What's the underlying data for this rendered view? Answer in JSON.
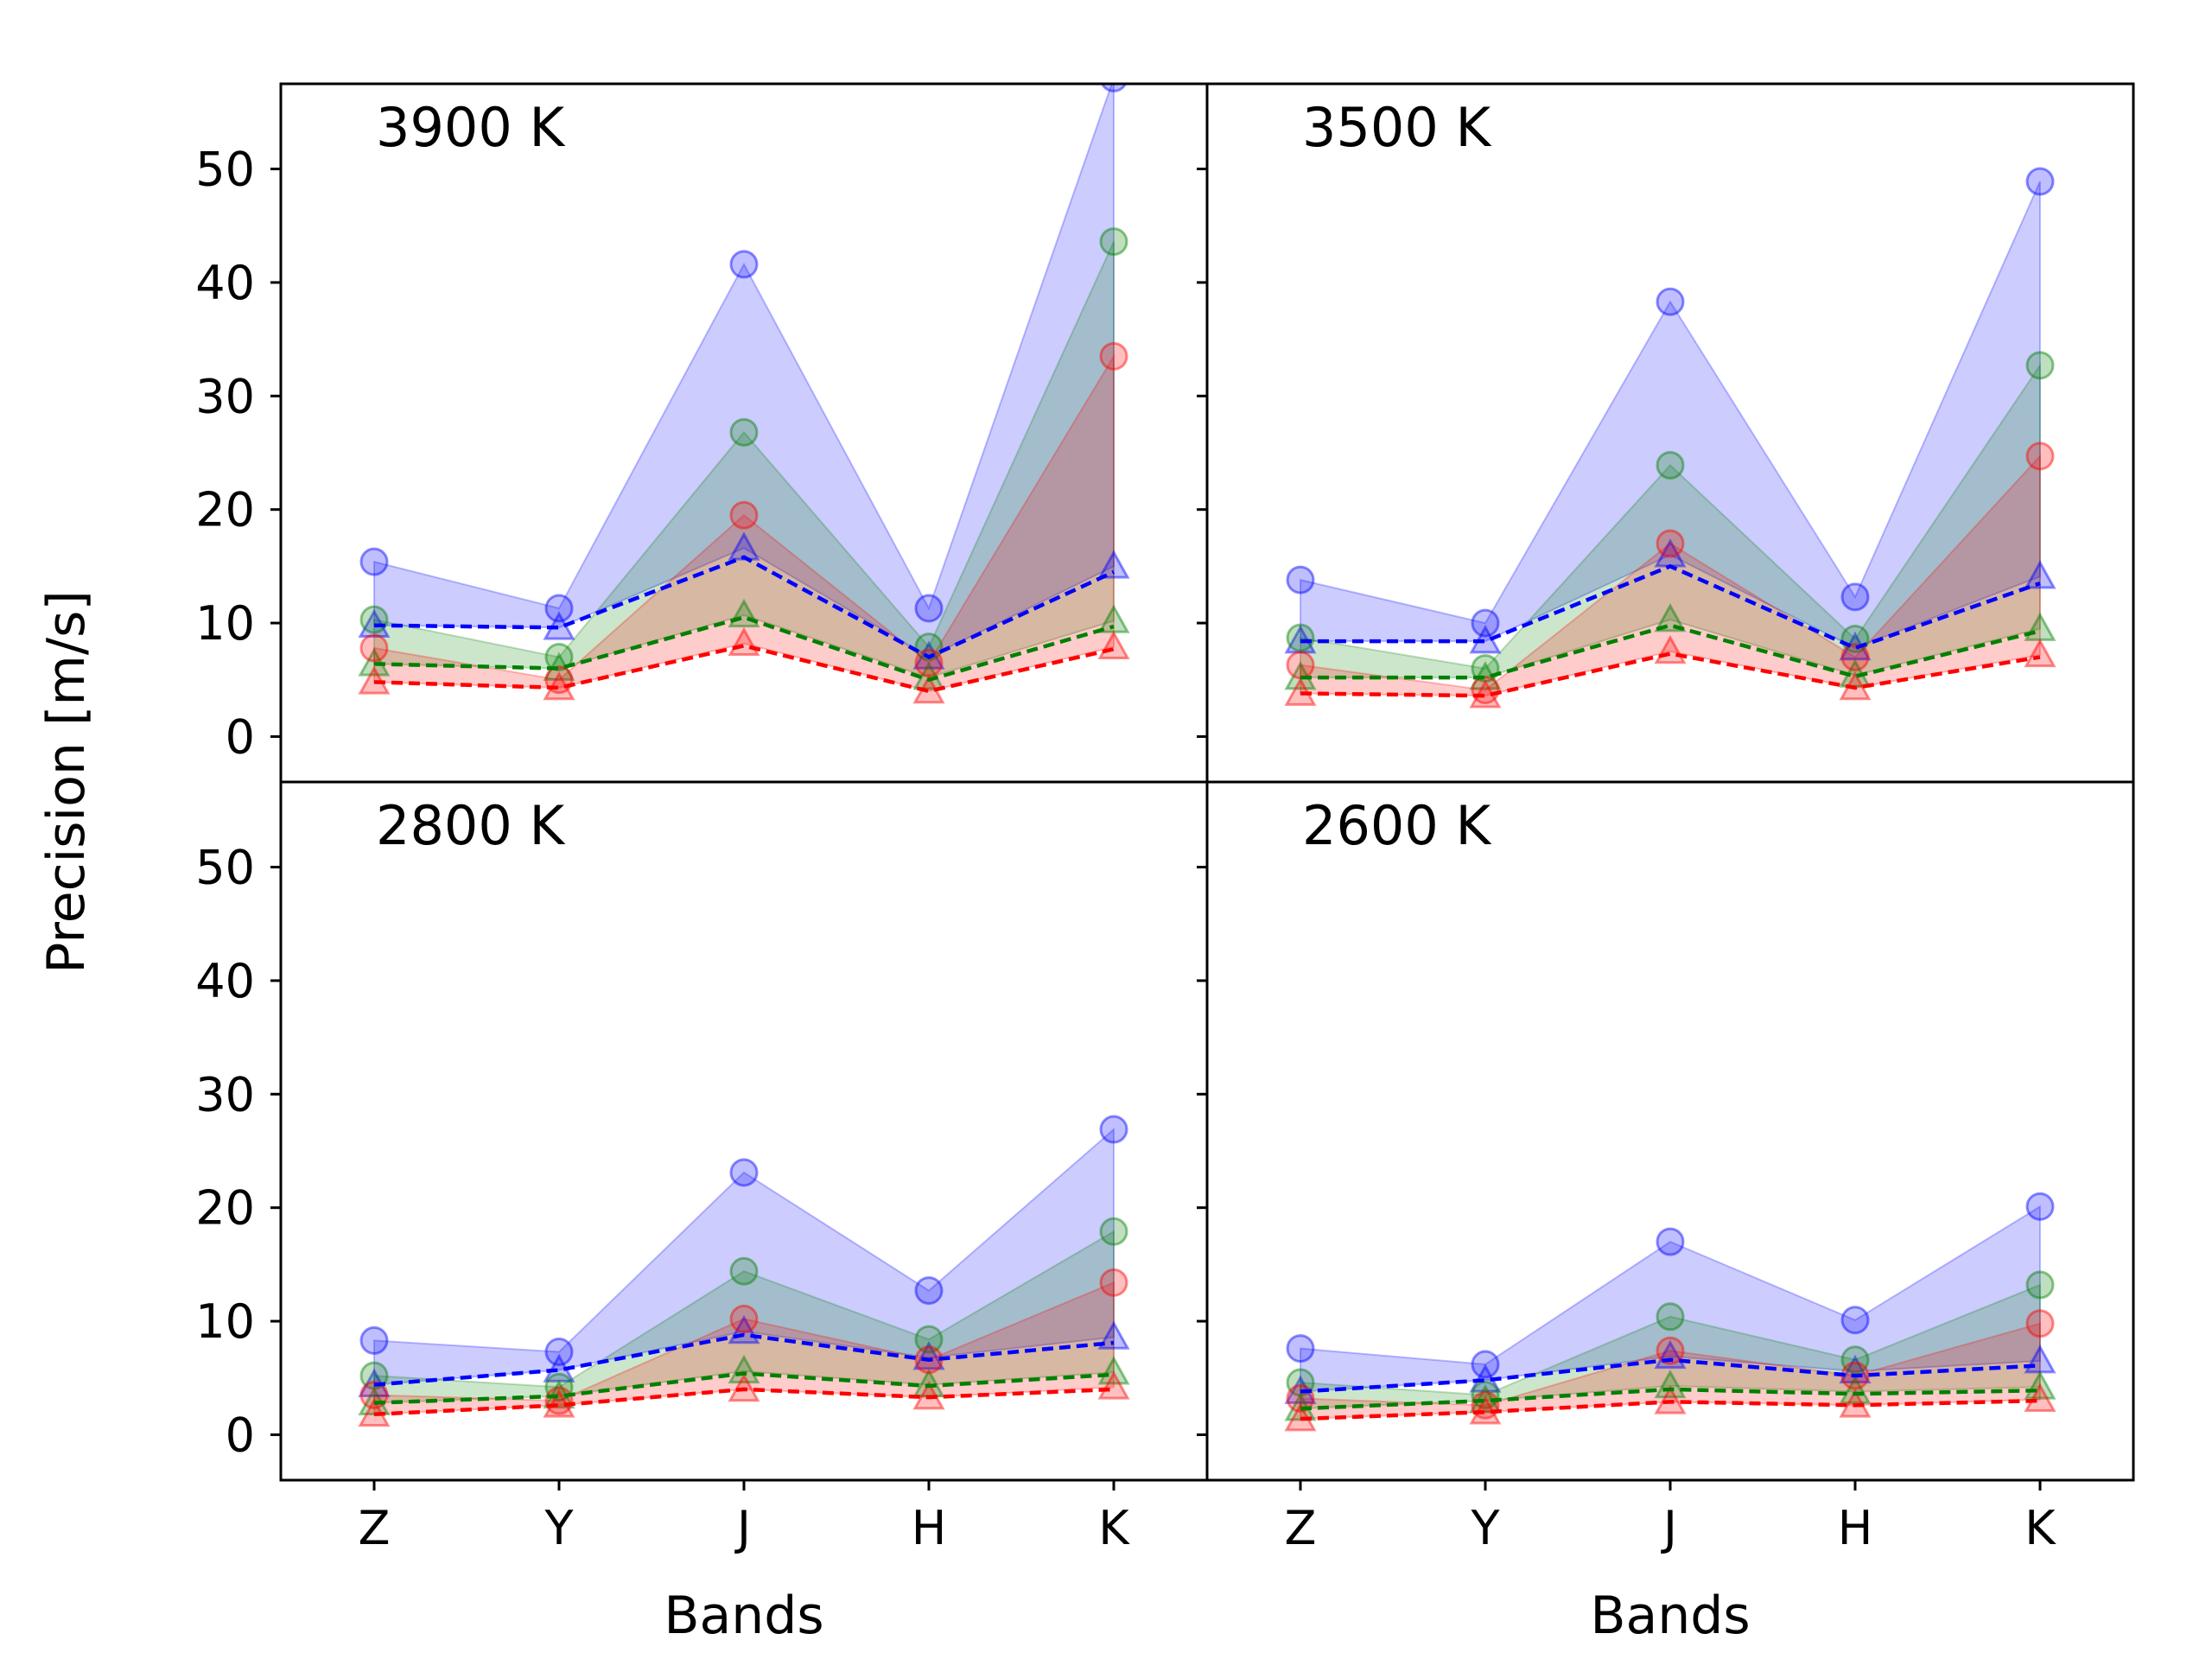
{
  "chart_data": {
    "type": "line",
    "ylabel": "Precision [m/s]",
    "xlabel": "Bands",
    "categories": [
      "Z",
      "Y",
      "J",
      "H",
      "K"
    ],
    "ylim": [
      -4,
      57.5
    ],
    "yticks": [
      0,
      10,
      20,
      30,
      40,
      50
    ],
    "grid": false,
    "layout": "2x2 panels, shared axes",
    "colors": {
      "blue": "#0000ff",
      "green": "#008000",
      "red": "#ff0000"
    },
    "panels": [
      {
        "title": "3900 K",
        "series": [
          {
            "name": "blue",
            "circles": [
              15.4,
              11.3,
              41.6,
              11.3,
              58.0
            ],
            "triangles": [
              9.8,
              9.6,
              16.6,
              7.0,
              15.0
            ],
            "dashed": [
              9.8,
              9.6,
              15.8,
              7.0,
              14.5
            ]
          },
          {
            "name": "green",
            "circles": [
              10.3,
              7.0,
              26.8,
              7.9,
              43.6
            ],
            "triangles": [
              6.4,
              6.0,
              10.7,
              5.2,
              10.2
            ],
            "dashed": [
              6.4,
              6.0,
              10.5,
              5.0,
              9.7
            ]
          },
          {
            "name": "red",
            "circles": [
              7.8,
              5.0,
              19.5,
              6.5,
              33.5
            ],
            "triangles": [
              4.8,
              4.3,
              8.2,
              4.0,
              7.9
            ],
            "dashed": [
              4.8,
              4.3,
              8.0,
              4.0,
              7.7
            ]
          }
        ]
      },
      {
        "title": "3500 K",
        "series": [
          {
            "name": "blue",
            "circles": [
              13.8,
              10.0,
              38.3,
              12.3,
              48.9
            ],
            "triangles": [
              8.4,
              8.4,
              16.0,
              7.8,
              14.1
            ],
            "dashed": [
              8.4,
              8.4,
              15.0,
              7.8,
              13.5
            ]
          },
          {
            "name": "green",
            "circles": [
              8.7,
              6.0,
              23.9,
              8.6,
              32.7
            ],
            "triangles": [
              5.2,
              5.2,
              10.3,
              5.4,
              9.5
            ],
            "dashed": [
              5.2,
              5.2,
              9.8,
              5.3,
              9.3
            ]
          },
          {
            "name": "red",
            "circles": [
              6.3,
              4.1,
              17.0,
              7.0,
              24.7
            ],
            "triangles": [
              3.8,
              3.6,
              7.5,
              4.3,
              7.2
            ],
            "dashed": [
              3.8,
              3.6,
              7.3,
              4.3,
              7.0
            ]
          }
        ]
      },
      {
        "title": "2800 K",
        "series": [
          {
            "name": "blue",
            "circles": [
              8.3,
              7.3,
              23.1,
              12.7,
              26.9
            ],
            "triangles": [
              4.4,
              5.7,
              9.1,
              6.8,
              8.6
            ],
            "dashed": [
              4.4,
              5.7,
              8.8,
              6.6,
              8.1
            ]
          },
          {
            "name": "green",
            "circles": [
              5.2,
              4.2,
              14.4,
              8.4,
              17.9
            ],
            "triangles": [
              2.8,
              3.4,
              5.6,
              4.4,
              5.5
            ],
            "dashed": [
              2.8,
              3.4,
              5.4,
              4.3,
              5.3
            ]
          },
          {
            "name": "red",
            "circles": [
              3.5,
              3.0,
              10.2,
              6.6,
              13.4
            ],
            "triangles": [
              1.8,
              2.6,
              4.0,
              3.3,
              4.2
            ],
            "dashed": [
              1.8,
              2.6,
              4.0,
              3.3,
              4.0
            ]
          }
        ]
      },
      {
        "title": "2600 K",
        "series": [
          {
            "name": "blue",
            "circles": [
              7.6,
              6.2,
              17.0,
              10.1,
              20.1
            ],
            "triangles": [
              3.8,
              4.8,
              6.9,
              5.6,
              6.5
            ],
            "dashed": [
              3.8,
              4.8,
              6.6,
              5.2,
              6.1
            ]
          },
          {
            "name": "green",
            "circles": [
              4.6,
              3.5,
              10.4,
              6.6,
              13.2
            ],
            "triangles": [
              2.3,
              3.0,
              4.3,
              3.8,
              4.2
            ],
            "dashed": [
              2.3,
              3.0,
              4.0,
              3.6,
              3.9
            ]
          },
          {
            "name": "red",
            "circles": [
              3.2,
              2.6,
              7.4,
              5.2,
              9.8
            ],
            "triangles": [
              1.4,
              2.0,
              2.9,
              2.6,
              3.1
            ],
            "dashed": [
              1.4,
              2.0,
              2.9,
              2.6,
              3.0
            ]
          }
        ]
      }
    ]
  }
}
